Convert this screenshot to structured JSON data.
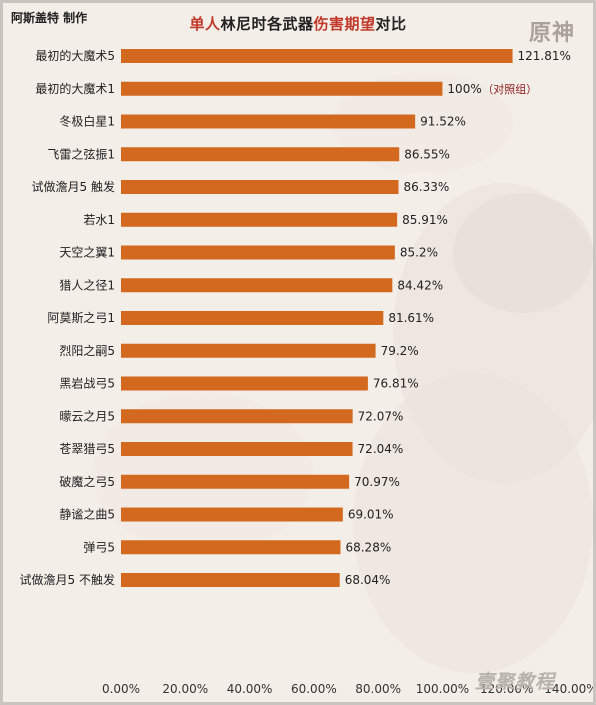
{
  "header": {
    "author": "阿斯盖特 制作",
    "title_parts": [
      "单人",
      "林尼时各武器",
      "伤害期望",
      "对比"
    ],
    "logo": "原神",
    "watermark": "壹聚教程"
  },
  "colors": {
    "bar": "#d2691e",
    "highlight": "#c0392b"
  },
  "chart_data": {
    "type": "bar",
    "orientation": "horizontal",
    "title": "单人林尼时各武器伤害期望对比",
    "categories": [
      "最初的大魔术5",
      "最初的大魔术1",
      "冬极白星1",
      "飞雷之弦振1",
      "试做澹月5 触发",
      "若水1",
      "天空之翼1",
      "猎人之径1",
      "阿莫斯之弓1",
      "烈阳之嗣5",
      "黑岩战弓5",
      "曚云之月5",
      "苍翠猎弓5",
      "破魔之弓5",
      "静谧之曲5",
      "弹弓5",
      "试做澹月5 不触发"
    ],
    "values": [
      121.81,
      100,
      91.52,
      86.55,
      86.33,
      85.91,
      85.2,
      84.42,
      81.61,
      79.2,
      76.81,
      72.07,
      72.04,
      70.97,
      69.01,
      68.28,
      68.04
    ],
    "value_labels": [
      "121.81%",
      "100%",
      "91.52%",
      "86.55%",
      "86.33%",
      "85.91%",
      "85.2%",
      "84.42%",
      "81.61%",
      "79.2%",
      "76.81%",
      "72.07%",
      "72.04%",
      "70.97%",
      "69.01%",
      "68.28%",
      "68.04%"
    ],
    "annotations": [
      {
        "category": "最初的大魔术1",
        "text": "（对照组）"
      }
    ],
    "xlim": [
      0,
      140
    ],
    "xticks": [
      "0.00%",
      "20.00%",
      "40.00%",
      "60.00%",
      "80.00%",
      "100.00%",
      "120.00%",
      "140.00%"
    ],
    "xlabel": "",
    "ylabel": "",
    "grid": false,
    "legend": "none"
  }
}
